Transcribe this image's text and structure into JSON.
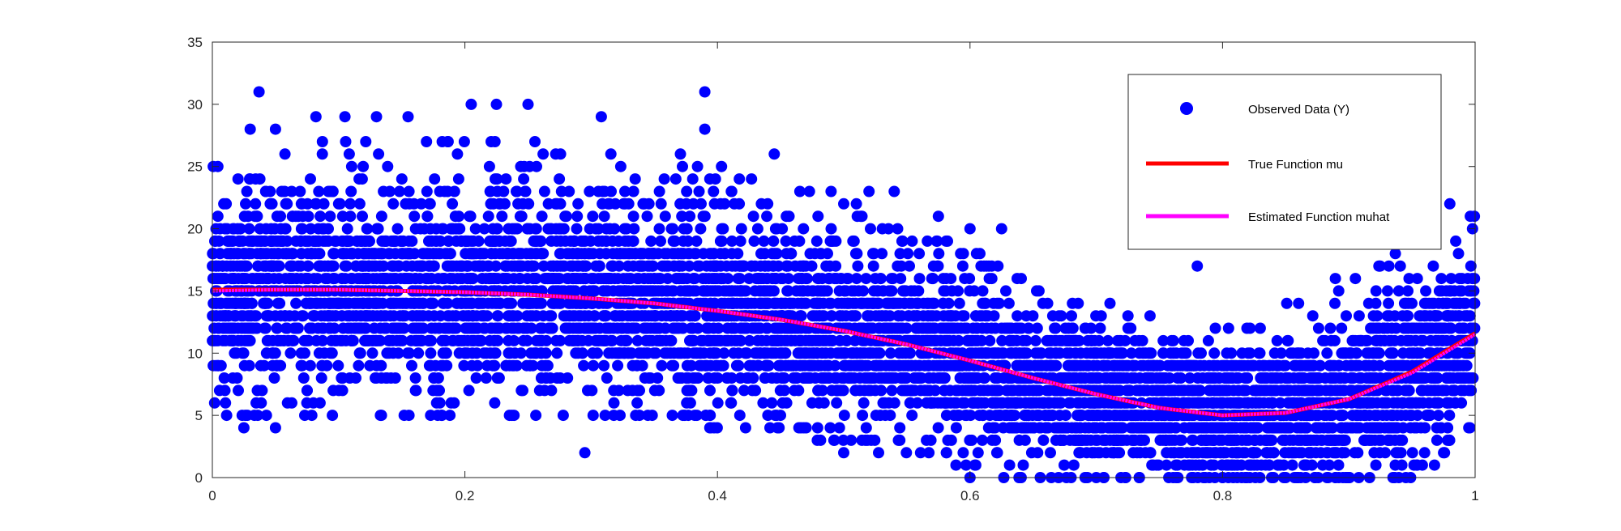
{
  "chart_data": {
    "type": "scatter",
    "title": "",
    "xlabel": "",
    "ylabel": "",
    "xlim": [
      0,
      1
    ],
    "ylim": [
      0,
      35
    ],
    "x_ticks": [
      0,
      0.2,
      0.4,
      0.6,
      0.8,
      1
    ],
    "x_tick_labels": [
      "0",
      "0.2",
      "0.4",
      "0.6",
      "0.8",
      "1"
    ],
    "y_ticks": [
      0,
      5,
      10,
      15,
      20,
      25,
      30,
      35
    ],
    "y_tick_labels": [
      "0",
      "5",
      "10",
      "15",
      "20",
      "25",
      "30",
      "35"
    ],
    "grid": false,
    "legend_position": "top-right",
    "series": [
      {
        "name": "Observed Data (Y)",
        "kind": "scatter",
        "marker": "filled-circle",
        "color": "#0000ff",
        "description_stats": {
          "point_count_estimate": 20000,
          "value_range": [
            0,
            31
          ],
          "typical_spread": "about 6 units around the trend"
        },
        "band": {
          "x": [
            0,
            0.05,
            0.1,
            0.15,
            0.2,
            0.25,
            0.3,
            0.35,
            0.4,
            0.45,
            0.5,
            0.55,
            0.6,
            0.65,
            0.7,
            0.75,
            0.8,
            0.85,
            0.9,
            0.95,
            1.0
          ],
          "lower": [
            5,
            5,
            5,
            5,
            5,
            5,
            5,
            5,
            4,
            4,
            3,
            2,
            1,
            0,
            0,
            0,
            0,
            0,
            0,
            0,
            4
          ],
          "upper": [
            25,
            26,
            27,
            27,
            27,
            27,
            26,
            26,
            25,
            24,
            22,
            20,
            18,
            15,
            14,
            13,
            13,
            14,
            16,
            19,
            22
          ]
        },
        "highlighted_points": [
          {
            "x": 0.037,
            "y": 31
          },
          {
            "x": 0.39,
            "y": 31
          },
          {
            "x": 0.205,
            "y": 30
          },
          {
            "x": 0.225,
            "y": 30
          },
          {
            "x": 0.25,
            "y": 30
          },
          {
            "x": 0.082,
            "y": 29
          },
          {
            "x": 0.105,
            "y": 29
          },
          {
            "x": 0.13,
            "y": 29
          },
          {
            "x": 0.155,
            "y": 29
          },
          {
            "x": 0.308,
            "y": 29
          },
          {
            "x": 0.39,
            "y": 28
          },
          {
            "x": 0.03,
            "y": 28
          },
          {
            "x": 0.05,
            "y": 28
          },
          {
            "x": 0.445,
            "y": 26
          },
          {
            "x": 0.49,
            "y": 23
          },
          {
            "x": 0.5,
            "y": 22
          },
          {
            "x": 0.52,
            "y": 23
          },
          {
            "x": 0.54,
            "y": 23
          },
          {
            "x": 0.575,
            "y": 21
          },
          {
            "x": 0.6,
            "y": 20
          },
          {
            "x": 0.625,
            "y": 20
          },
          {
            "x": 0.78,
            "y": 17
          },
          {
            "x": 0.95,
            "y": 23
          },
          {
            "x": 0.98,
            "y": 22
          },
          {
            "x": 0.025,
            "y": 4
          },
          {
            "x": 0.05,
            "y": 4
          },
          {
            "x": 0.295,
            "y": 2
          },
          {
            "x": 0.5,
            "y": 2
          },
          {
            "x": 0.6,
            "y": 0
          },
          {
            "x": 0.7,
            "y": 0
          },
          {
            "x": 0.8,
            "y": 0
          },
          {
            "x": 0.85,
            "y": 0
          },
          {
            "x": 0.9,
            "y": 0
          },
          {
            "x": 0.92,
            "y": 2
          },
          {
            "x": 0.96,
            "y": 2
          },
          {
            "x": 0.995,
            "y": 4
          }
        ]
      },
      {
        "name": "True Function mu",
        "kind": "line",
        "color": "#ff0000",
        "x": [
          0,
          0.05,
          0.1,
          0.15,
          0.2,
          0.25,
          0.3,
          0.35,
          0.4,
          0.45,
          0.5,
          0.55,
          0.6,
          0.65,
          0.7,
          0.75,
          0.8,
          0.85,
          0.9,
          0.95,
          1.0
        ],
        "y": [
          15.1,
          15.1,
          15.1,
          15.0,
          14.9,
          14.7,
          14.4,
          14.0,
          13.4,
          12.7,
          11.8,
          10.7,
          9.4,
          8.0,
          6.7,
          5.6,
          5.0,
          5.2,
          6.3,
          8.5,
          11.6
        ]
      },
      {
        "name": "Estimated Function muhat",
        "kind": "line",
        "color": "#ff00ff",
        "x": [
          0,
          0.05,
          0.1,
          0.15,
          0.2,
          0.25,
          0.3,
          0.35,
          0.4,
          0.45,
          0.5,
          0.55,
          0.6,
          0.65,
          0.7,
          0.75,
          0.8,
          0.85,
          0.9,
          0.95,
          1.0
        ],
        "y": [
          15.0,
          15.1,
          15.1,
          15.0,
          14.9,
          14.7,
          14.4,
          14.0,
          13.4,
          12.7,
          11.8,
          10.7,
          9.4,
          8.0,
          6.7,
          5.6,
          5.0,
          5.2,
          6.3,
          8.4,
          11.5
        ]
      }
    ]
  }
}
